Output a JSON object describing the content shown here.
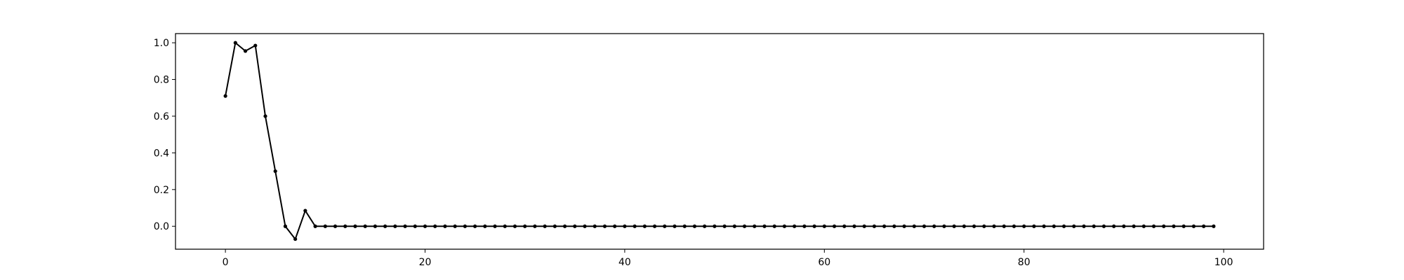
{
  "chart_data": {
    "type": "line",
    "title": "",
    "xlabel": "",
    "ylabel": "",
    "xlim": [
      -5,
      104
    ],
    "ylim": [
      -0.125,
      1.05
    ],
    "grid": false,
    "x_ticks": [
      0,
      20,
      40,
      60,
      80,
      100
    ],
    "x_tick_labels": [
      "0",
      "20",
      "40",
      "60",
      "80",
      "100"
    ],
    "y_ticks": [
      0.0,
      0.2,
      0.4,
      0.6,
      0.8,
      1.0
    ],
    "y_tick_labels": [
      "0.0",
      "0.2",
      "0.4",
      "0.6",
      "0.8",
      "1.0"
    ],
    "colors": {
      "line": "#000000",
      "marker": "#000000",
      "axes": "#000000"
    },
    "series": [
      {
        "x": [
          0,
          1,
          2,
          3,
          4,
          5,
          6,
          7,
          8,
          9,
          10,
          11,
          12,
          13,
          14,
          15,
          16,
          17,
          18,
          19,
          20,
          21,
          22,
          23,
          24,
          25,
          26,
          27,
          28,
          29,
          30,
          31,
          32,
          33,
          34,
          35,
          36,
          37,
          38,
          39,
          40,
          41,
          42,
          43,
          44,
          45,
          46,
          47,
          48,
          49,
          50,
          51,
          52,
          53,
          54,
          55,
          56,
          57,
          58,
          59,
          60,
          61,
          62,
          63,
          64,
          65,
          66,
          67,
          68,
          69,
          70,
          71,
          72,
          73,
          74,
          75,
          76,
          77,
          78,
          79,
          80,
          81,
          82,
          83,
          84,
          85,
          86,
          87,
          88,
          89,
          90,
          91,
          92,
          93,
          94,
          95,
          96,
          97,
          98,
          99
        ],
        "values": [
          0.71,
          1.0,
          0.955,
          0.985,
          0.6,
          0.3,
          0.0,
          -0.07,
          0.085,
          0.0,
          0.0,
          0.0,
          0.0,
          0.0,
          0.0,
          0.0,
          0.0,
          0.0,
          0.0,
          0.0,
          0.0,
          0.0,
          0.0,
          0.0,
          0.0,
          0.0,
          0.0,
          0.0,
          0.0,
          0.0,
          0.0,
          0.0,
          0.0,
          0.0,
          0.0,
          0.0,
          0.0,
          0.0,
          0.0,
          0.0,
          0.0,
          0.0,
          0.0,
          0.0,
          0.0,
          0.0,
          0.0,
          0.0,
          0.0,
          0.0,
          0.0,
          0.0,
          0.0,
          0.0,
          0.0,
          0.0,
          0.0,
          0.0,
          0.0,
          0.0,
          0.0,
          0.0,
          0.0,
          0.0,
          0.0,
          0.0,
          0.0,
          0.0,
          0.0,
          0.0,
          0.0,
          0.0,
          0.0,
          0.0,
          0.0,
          0.0,
          0.0,
          0.0,
          0.0,
          0.0,
          0.0,
          0.0,
          0.0,
          0.0,
          0.0,
          0.0,
          0.0,
          0.0,
          0.0,
          0.0,
          0.0,
          0.0,
          0.0,
          0.0,
          0.0,
          0.0,
          0.0,
          0.0,
          0.0,
          0.0
        ]
      }
    ]
  }
}
